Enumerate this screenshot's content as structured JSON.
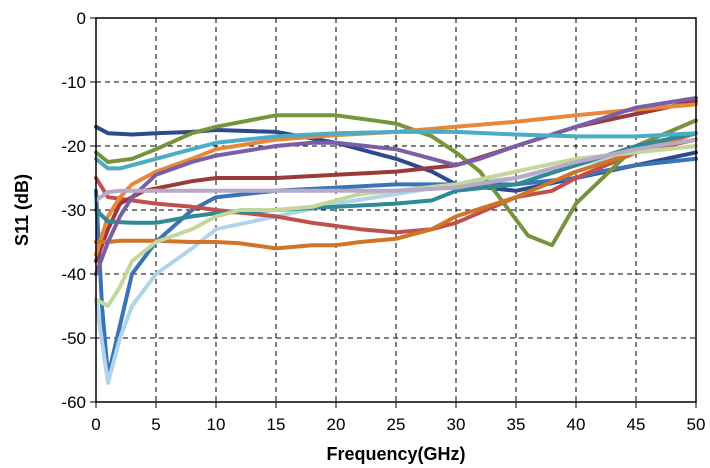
{
  "chart_data": {
    "type": "line",
    "title": "",
    "xlabel": "Frequency(GHz)",
    "ylabel": "S11 (dB)",
    "xlim": [
      0,
      50
    ],
    "ylim": [
      -60,
      0
    ],
    "xticks": [
      0,
      5,
      10,
      15,
      20,
      25,
      30,
      35,
      40,
      45,
      50
    ],
    "yticks": [
      0,
      -10,
      -20,
      -30,
      -40,
      -50,
      -60
    ],
    "grid": true,
    "grid_style": "dashed",
    "legend": "none",
    "series": [
      {
        "color": "#2e4a8f",
        "x": [
          0,
          1,
          3,
          5,
          8,
          10,
          15,
          20,
          22,
          25,
          28,
          30,
          35,
          40,
          45,
          50
        ],
        "y": [
          -17,
          -18,
          -18.2,
          -18,
          -17.8,
          -17.5,
          -17.8,
          -19.5,
          -20.5,
          -22,
          -24,
          -26,
          -27,
          -25,
          -23,
          -21
        ]
      },
      {
        "color": "#3a74b7",
        "x": [
          0,
          0.5,
          1,
          2,
          3,
          5,
          8,
          10,
          15,
          20,
          25,
          30,
          35,
          40,
          42,
          45,
          50
        ],
        "y": [
          -27,
          -45,
          -56,
          -48,
          -40,
          -35,
          -30,
          -28,
          -27,
          -26.5,
          -26,
          -26,
          -26,
          -25,
          -24,
          -23,
          -22
        ]
      },
      {
        "color": "#b0d4e8",
        "x": [
          0,
          1,
          2,
          3,
          5,
          8,
          10,
          15,
          20,
          25,
          30,
          35,
          40,
          45,
          50
        ],
        "y": [
          -44,
          -57,
          -50,
          -45,
          -40,
          -36,
          -33,
          -31,
          -29,
          -27.5,
          -26,
          -25,
          -23,
          -21,
          -20
        ]
      },
      {
        "color": "#c0504d",
        "x": [
          0,
          1,
          3,
          5,
          8,
          10,
          15,
          18,
          20,
          22,
          25,
          28,
          30,
          35,
          38,
          40,
          45,
          50
        ],
        "y": [
          -25,
          -28,
          -28.5,
          -29,
          -29.5,
          -30,
          -31,
          -32,
          -32.5,
          -33,
          -33.5,
          -33,
          -32,
          -28,
          -27,
          -25,
          -21,
          -19
        ]
      },
      {
        "color": "#9b3a3a",
        "x": [
          0,
          1,
          2,
          4,
          8,
          10,
          15,
          20,
          25,
          30,
          35,
          40,
          45,
          50
        ],
        "y": [
          -38,
          -33,
          -29,
          -27,
          -25.5,
          -25,
          -25,
          -24.5,
          -24,
          -23,
          -20,
          -17,
          -15,
          -13
        ]
      },
      {
        "color": "#77933c",
        "x": [
          0,
          1,
          3,
          5,
          8,
          10,
          15,
          20,
          25,
          28,
          30,
          32,
          34,
          36,
          38,
          40,
          45,
          50
        ],
        "y": [
          -21,
          -22.5,
          -22,
          -20.5,
          -18,
          -17,
          -15.2,
          -15.2,
          -16.5,
          -18.5,
          -21,
          -24,
          -29,
          -34,
          -35.5,
          -29,
          -20,
          -16
        ]
      },
      {
        "color": "#e8863a",
        "x": [
          0,
          1,
          2,
          3,
          5,
          8,
          10,
          15,
          20,
          25,
          30,
          35,
          40,
          45,
          50
        ],
        "y": [
          -37,
          -31,
          -28,
          -26,
          -24,
          -22,
          -20.5,
          -19,
          -18.3,
          -17.8,
          -17,
          -16.2,
          -15.2,
          -14.3,
          -13.5
        ]
      },
      {
        "color": "#d07428",
        "x": [
          0,
          1,
          2,
          5,
          8,
          10,
          12,
          15,
          18,
          20,
          22,
          25,
          28,
          30,
          35,
          40,
          45,
          50
        ],
        "y": [
          -35,
          -35,
          -34.8,
          -34.8,
          -35,
          -35,
          -35.2,
          -36,
          -35.5,
          -35.5,
          -35,
          -34.5,
          -33,
          -31,
          -28,
          -24,
          -21,
          -18
        ]
      },
      {
        "color": "#2f8a96",
        "x": [
          0,
          1,
          3,
          5,
          8,
          10,
          15,
          20,
          25,
          28,
          30,
          35,
          40,
          45,
          50
        ],
        "y": [
          -30,
          -31.8,
          -32,
          -32,
          -31,
          -30.5,
          -30,
          -29.5,
          -29,
          -28.5,
          -27,
          -26,
          -23,
          -20,
          -18
        ]
      },
      {
        "color": "#7b5ea8",
        "x": [
          0,
          1,
          2,
          3,
          5,
          8,
          10,
          15,
          18,
          20,
          25,
          28,
          30,
          32,
          35,
          40,
          45,
          50
        ],
        "y": [
          -40,
          -35,
          -31,
          -28,
          -24.5,
          -22.5,
          -21.5,
          -20,
          -19.5,
          -19.5,
          -20.5,
          -22,
          -23,
          -22,
          -20,
          -17,
          -14,
          -12.5
        ]
      },
      {
        "color": "#4bacc6",
        "x": [
          0,
          1,
          2,
          3,
          5,
          8,
          10,
          15,
          20,
          25,
          30,
          35,
          40,
          45,
          50
        ],
        "y": [
          -22,
          -23.5,
          -23.5,
          -23,
          -22,
          -20.5,
          -19.5,
          -18.5,
          -18,
          -17.8,
          -17.8,
          -18.2,
          -18.5,
          -18.5,
          -18
        ]
      },
      {
        "color": "#c4d79b",
        "x": [
          0,
          0.5,
          1,
          2,
          3,
          5,
          8,
          10,
          12,
          15,
          18,
          20,
          22,
          25,
          30,
          35,
          40,
          45,
          50
        ],
        "y": [
          -44,
          -44.5,
          -45,
          -42,
          -38,
          -35,
          -33,
          -31,
          -30,
          -30,
          -29.5,
          -28.5,
          -27.5,
          -27,
          -26,
          -24,
          -22,
          -21,
          -20
        ]
      },
      {
        "color": "#b8a9c9",
        "x": [
          0,
          1,
          2,
          5,
          10,
          15,
          20,
          25,
          30,
          35,
          40,
          45,
          50
        ],
        "y": [
          -28.5,
          -27.2,
          -27,
          -27,
          -27,
          -27,
          -27,
          -27,
          -26.5,
          -25,
          -22.5,
          -20.5,
          -19
        ]
      }
    ]
  }
}
